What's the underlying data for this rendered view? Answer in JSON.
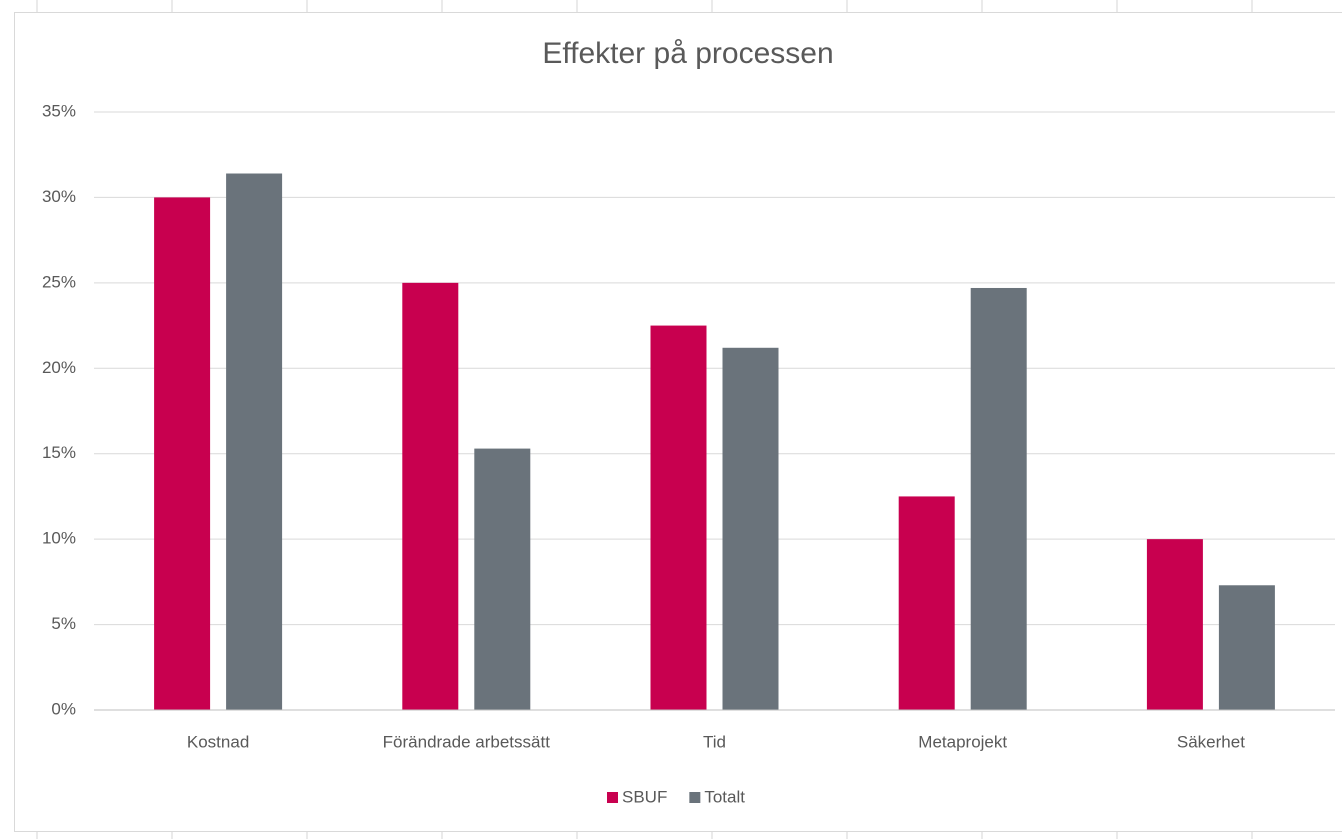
{
  "chart_data": {
    "type": "bar",
    "title": "Effekter på processen",
    "categories": [
      "Kostnad",
      "Förändrade arbetssätt",
      "Tid",
      "Metaprojekt",
      "Säkerhet"
    ],
    "series": [
      {
        "name": "SBUF",
        "color": "#c8004f",
        "values": [
          30,
          25,
          22.5,
          12.5,
          10
        ]
      },
      {
        "name": "Totalt",
        "color": "#6a737b",
        "values": [
          31.4,
          15.3,
          21.2,
          24.7,
          7.3
        ]
      }
    ],
    "ylim": [
      0,
      35
    ],
    "yticks": [
      {
        "value": 0,
        "label": "0%"
      },
      {
        "value": 5,
        "label": "5%"
      },
      {
        "value": 10,
        "label": "10%"
      },
      {
        "value": 15,
        "label": "15%"
      },
      {
        "value": 20,
        "label": "20%"
      },
      {
        "value": 25,
        "label": "25%"
      },
      {
        "value": 30,
        "label": "30%"
      },
      {
        "value": 35,
        "label": "35%"
      }
    ],
    "grid": true,
    "legend": "bottom"
  }
}
